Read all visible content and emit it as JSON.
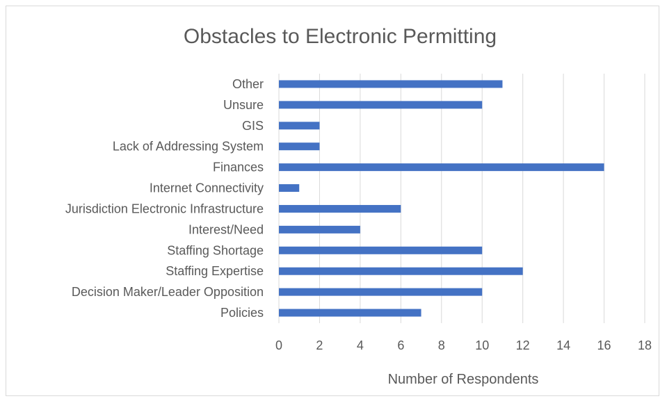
{
  "chart_data": {
    "type": "bar",
    "orientation": "horizontal",
    "title": "Obstacles to Electronic Permitting",
    "xlabel": "Number of Respondents",
    "ylabel": "",
    "xlim": [
      0,
      18
    ],
    "xticks": [
      0,
      2,
      4,
      6,
      8,
      10,
      12,
      14,
      16,
      18
    ],
    "grid": true,
    "legend": "none",
    "bar_color": "#4472c4",
    "grid_color": "#d9d9d9",
    "categories": [
      "Other",
      "Unsure",
      "GIS",
      "Lack of Addressing System",
      "Finances",
      "Internet Connectivity",
      "Jurisdiction Electronic Infrastructure",
      "Interest/Need",
      "Staffing Shortage",
      "Staffing Expertise",
      "Decision Maker/Leader Opposition",
      "Policies"
    ],
    "values": [
      11,
      10,
      2,
      2,
      16,
      1,
      6,
      4,
      10,
      12,
      10,
      7
    ]
  }
}
